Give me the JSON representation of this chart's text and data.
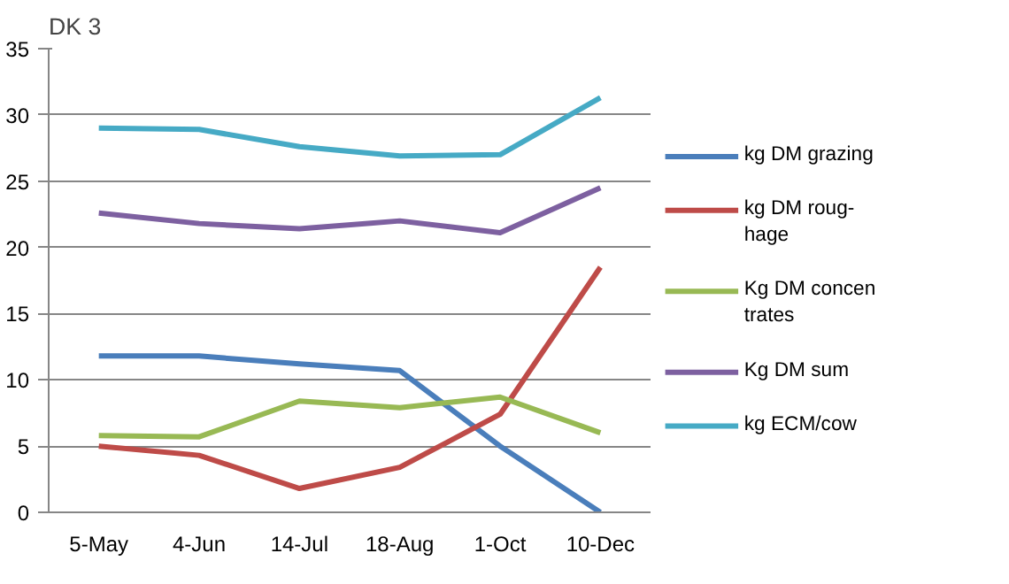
{
  "chart_data": {
    "type": "line",
    "title": "DK 3",
    "categories": [
      "5-May",
      "4-Jun",
      "14-Jul",
      "18-Aug",
      "1-Oct",
      "10-Dec"
    ],
    "series": [
      {
        "name": "kg DM grazing",
        "color": "#4a7ebb",
        "values": [
          11.8,
          11.8,
          11.2,
          10.7,
          5.0,
          0
        ]
      },
      {
        "name": "kg  DM roug-\nhage",
        "color": "#be4b48",
        "values": [
          5.0,
          4.3,
          1.8,
          3.4,
          7.4,
          18.5
        ]
      },
      {
        "name": "Kg DM concen\ntrates",
        "color": "#98b954",
        "values": [
          5.8,
          5.7,
          8.4,
          7.9,
          8.7,
          6.0
        ]
      },
      {
        "name": "Kg DM sum",
        "color": "#7d60a0",
        "values": [
          22.6,
          21.8,
          21.4,
          22.0,
          21.1,
          24.5
        ]
      },
      {
        "name": "kg ECM/cow",
        "color": "#46aac5",
        "values": [
          29.0,
          28.9,
          27.6,
          26.9,
          27.0,
          31.3
        ]
      }
    ],
    "ylim": [
      0,
      35
    ],
    "yticks": [
      0,
      5,
      10,
      15,
      20,
      25,
      30,
      35
    ],
    "grid": "y",
    "legend": "right",
    "marker": "none",
    "line_style": "solid"
  }
}
